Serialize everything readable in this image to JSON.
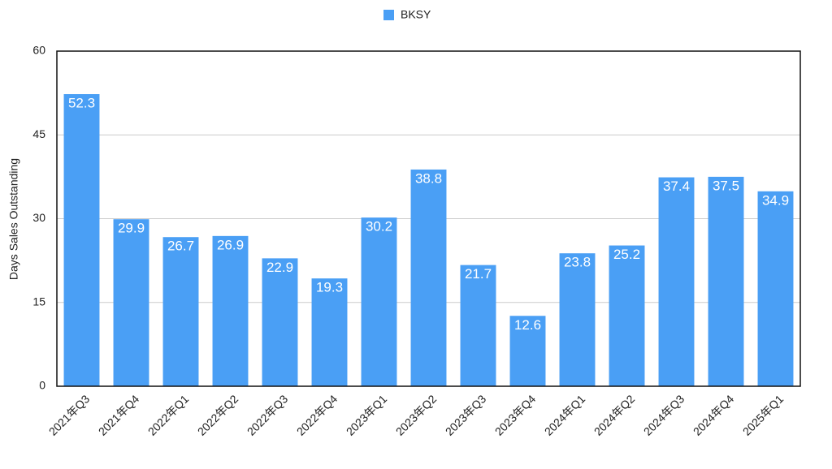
{
  "chart_data": {
    "type": "bar",
    "y_axis_label": "Days Sales Outstanding",
    "categories": [
      "2021年Q3",
      "2021年Q4",
      "2022年Q1",
      "2022年Q2",
      "2022年Q3",
      "2022年Q4",
      "2023年Q1",
      "2023年Q2",
      "2023年Q3",
      "2023年Q4",
      "2024年Q1",
      "2024年Q2",
      "2024年Q3",
      "2024年Q4",
      "2025年Q1"
    ],
    "series": [
      {
        "name": "BKSY",
        "color": "#4a9ff5",
        "values": [
          52.3,
          29.9,
          26.7,
          26.9,
          22.9,
          19.3,
          30.2,
          38.8,
          21.7,
          12.6,
          23.8,
          25.2,
          37.4,
          37.5,
          34.9
        ]
      }
    ],
    "ylim": [
      0,
      60
    ],
    "yticks": [
      0,
      15,
      30,
      45,
      60
    ],
    "grid": true,
    "legend": "top"
  }
}
